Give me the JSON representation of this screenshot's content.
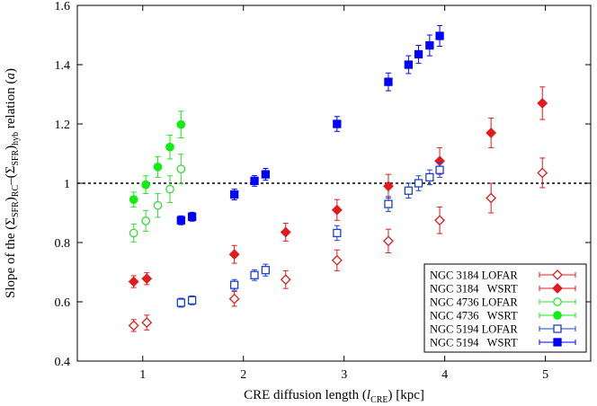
{
  "chart_data": {
    "type": "scatter",
    "title": "",
    "xlabel": "CRE diffusion length (",
    "xlabel_sym": "l",
    "xlabel_sub": "CRE",
    "xlabel_tail": ") [kpc]",
    "ylabel_parts": {
      "pre": "Slope of the (Σ",
      "sub1": "SFR",
      "mid1": ")",
      "sub2": "RC",
      "mid2": "–(Σ",
      "sub3": "SFR",
      "mid3": ")",
      "sub4": "hyb",
      "post": " relation (",
      "sym": "a",
      "end": ")"
    },
    "xlim": [
      0.35,
      5.45
    ],
    "ylim": [
      0.4,
      1.6
    ],
    "xticks": [
      1,
      2,
      3,
      4,
      5
    ],
    "yticks": [
      0.4,
      0.6,
      0.8,
      1.0,
      1.2,
      1.4,
      1.6
    ],
    "ytick_labels": [
      "0.4",
      "0.6",
      "0.8",
      "1",
      "1.2",
      "1.4",
      "1.6"
    ],
    "reference_line": 1.0,
    "legend_position": "bottom-right",
    "series": [
      {
        "name": "NGC 3184 LOFAR",
        "color": "#e41a1c",
        "marker": "diamond-open",
        "points": [
          [
            0.91,
            0.52,
            0.02
          ],
          [
            1.04,
            0.53,
            0.025
          ],
          [
            1.91,
            0.61,
            0.025
          ],
          [
            2.42,
            0.675,
            0.03
          ],
          [
            2.93,
            0.74,
            0.035
          ],
          [
            3.44,
            0.805,
            0.04
          ],
          [
            3.95,
            0.875,
            0.045
          ],
          [
            4.46,
            0.95,
            0.05
          ],
          [
            4.97,
            1.035,
            0.05
          ]
        ]
      },
      {
        "name": "NGC 3184   WSRT",
        "color": "#e41a1c",
        "marker": "diamond-filled",
        "points": [
          [
            0.91,
            0.668,
            0.02
          ],
          [
            1.04,
            0.678,
            0.02
          ],
          [
            1.91,
            0.76,
            0.03
          ],
          [
            2.42,
            0.835,
            0.03
          ],
          [
            2.93,
            0.91,
            0.035
          ],
          [
            3.44,
            0.99,
            0.04
          ],
          [
            3.95,
            1.075,
            0.045
          ],
          [
            4.46,
            1.17,
            0.05
          ],
          [
            4.97,
            1.27,
            0.055
          ]
        ]
      },
      {
        "name": "NGC 4736 LOFAR",
        "color": "#33dd33",
        "marker": "circle-open",
        "points": [
          [
            0.91,
            0.832,
            0.03
          ],
          [
            1.03,
            0.873,
            0.035
          ],
          [
            1.15,
            0.925,
            0.04
          ],
          [
            1.27,
            0.98,
            0.045
          ],
          [
            1.38,
            1.048,
            0.05
          ]
        ]
      },
      {
        "name": "NGC 4736   WSRT",
        "color": "#11ee11",
        "marker": "circle-filled",
        "points": [
          [
            0.91,
            0.945,
            0.025
          ],
          [
            1.03,
            0.995,
            0.03
          ],
          [
            1.15,
            1.055,
            0.035
          ],
          [
            1.27,
            1.122,
            0.04
          ],
          [
            1.38,
            1.198,
            0.045
          ]
        ]
      },
      {
        "name": "NGC 5194 LOFAR",
        "color": "#1a3fd6",
        "marker": "square-open",
        "points": [
          [
            1.38,
            0.597,
            0.015
          ],
          [
            1.49,
            0.605,
            0.015
          ],
          [
            1.91,
            0.657,
            0.018
          ],
          [
            2.11,
            0.69,
            0.018
          ],
          [
            2.22,
            0.707,
            0.02
          ],
          [
            2.93,
            0.832,
            0.025
          ],
          [
            3.44,
            0.93,
            0.025
          ],
          [
            3.64,
            0.975,
            0.025
          ],
          [
            3.74,
            1.0,
            0.025
          ],
          [
            3.85,
            1.02,
            0.025
          ],
          [
            3.95,
            1.045,
            0.025
          ]
        ]
      },
      {
        "name": "NGC 5194   WSRT",
        "color": "#0000ff",
        "marker": "square-filled",
        "points": [
          [
            1.38,
            0.875,
            0.015
          ],
          [
            1.49,
            0.887,
            0.015
          ],
          [
            1.91,
            0.962,
            0.018
          ],
          [
            2.11,
            1.008,
            0.018
          ],
          [
            2.22,
            1.03,
            0.02
          ],
          [
            2.93,
            1.2,
            0.025
          ],
          [
            3.44,
            1.342,
            0.03
          ],
          [
            3.64,
            1.4,
            0.03
          ],
          [
            3.74,
            1.435,
            0.03
          ],
          [
            3.85,
            1.465,
            0.035
          ],
          [
            3.95,
            1.497,
            0.035
          ]
        ]
      }
    ]
  }
}
